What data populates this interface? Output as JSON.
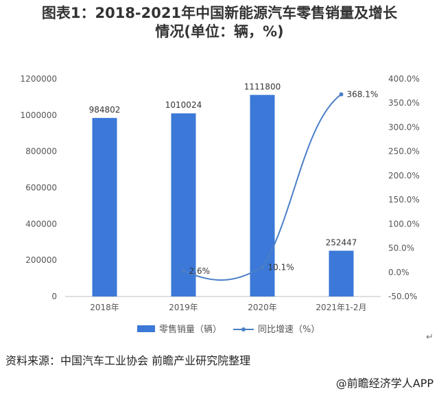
{
  "header": {
    "title_line1": "图表1：2018-2021年中国新能源汽车零售销量及增长",
    "title_line2": "情况(单位：辆，%)"
  },
  "chart_data": {
    "type": "bar",
    "categories": [
      "2018年",
      "2019年",
      "2020年",
      "2021年1-2月"
    ],
    "series": [
      {
        "name": "零售销量（辆）",
        "type": "bar",
        "axis": "left",
        "color": "#3b78d8",
        "values": [
          984802,
          1010024,
          1111800,
          252447
        ],
        "labels": [
          "984802",
          "1010024",
          "1111800",
          "252447"
        ]
      },
      {
        "name": "同比增速（%）",
        "type": "line",
        "axis": "right",
        "color": "#4a7fc7",
        "values": [
          null,
          2.6,
          10.1,
          368.1
        ],
        "labels": [
          "",
          "2.6%",
          "10.1%",
          "368.1%"
        ]
      }
    ],
    "y_left": {
      "min": 0,
      "max": 1200000,
      "ticks": [
        "0",
        "200000",
        "400000",
        "600000",
        "800000",
        "1000000",
        "1200000"
      ]
    },
    "y_right": {
      "min": -50,
      "max": 400,
      "ticks": [
        "-50.0%",
        "0.0%",
        "50.0%",
        "100.0%",
        "150.0%",
        "200.0%",
        "250.0%",
        "300.0%",
        "350.0%",
        "400.0%"
      ]
    },
    "grid": false,
    "legend_position": "bottom"
  },
  "footer": {
    "source": "资料来源：中国汽车工业协会 前瞻产业研究院整理",
    "credit": "@前瞻经济学人APP",
    "return_mark": "↵"
  }
}
